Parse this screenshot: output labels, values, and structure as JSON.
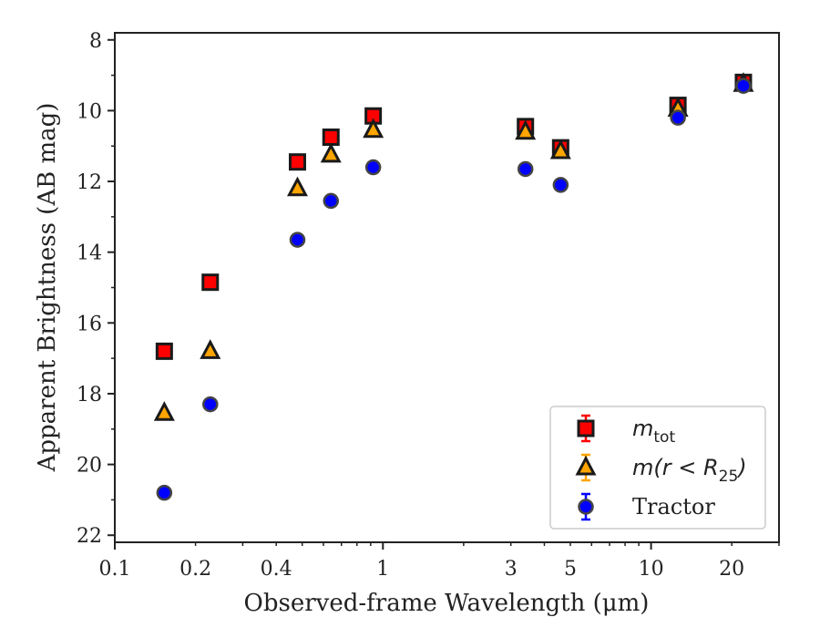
{
  "chart_data": {
    "type": "scatter",
    "xlabel": "Observed-frame Wavelength (μm)",
    "ylabel": "Apparent Brightness (AB mag)",
    "x_scale": "log",
    "xlim": [
      0.1,
      30
    ],
    "ylim": [
      22.2,
      7.8
    ],
    "y_inverted": true,
    "x_ticks": [
      0.1,
      0.2,
      0.4,
      1,
      3,
      5,
      10,
      20
    ],
    "x_tick_labels": [
      "0.1",
      "0.2",
      "0.4",
      "1",
      "3",
      "5",
      "10",
      "20"
    ],
    "y_ticks": [
      8,
      10,
      12,
      14,
      16,
      18,
      20,
      22
    ],
    "y_tick_labels": [
      "8",
      "10",
      "12",
      "14",
      "16",
      "18",
      "20",
      "22"
    ],
    "grid": false,
    "legend_position": "lower-right",
    "series": [
      {
        "name": "m_tot",
        "legend_main": "m",
        "legend_sub": "tot",
        "marker": "square",
        "color": "#ff0000",
        "edge": "#1a1a1a",
        "points": [
          {
            "x": 0.153,
            "y": 16.8
          },
          {
            "x": 0.227,
            "y": 14.85
          },
          {
            "x": 0.48,
            "y": 11.45
          },
          {
            "x": 0.64,
            "y": 10.75
          },
          {
            "x": 0.92,
            "y": 10.15
          },
          {
            "x": 3.4,
            "y": 10.45
          },
          {
            "x": 4.6,
            "y": 11.05
          },
          {
            "x": 12.6,
            "y": 9.85
          },
          {
            "x": 22.1,
            "y": 9.2
          }
        ]
      },
      {
        "name": "m(r<R25)",
        "legend_main": "m(r < R",
        "legend_sub": "25",
        "legend_end": ")",
        "marker": "triangle",
        "color": "#ffa500",
        "edge": "#1a1a1a",
        "points": [
          {
            "x": 0.153,
            "y": 18.55
          },
          {
            "x": 0.227,
            "y": 16.8
          },
          {
            "x": 0.48,
            "y": 12.2
          },
          {
            "x": 0.64,
            "y": 11.25
          },
          {
            "x": 0.92,
            "y": 10.55
          },
          {
            "x": 3.4,
            "y": 10.6
          },
          {
            "x": 4.6,
            "y": 11.15
          },
          {
            "x": 12.6,
            "y": 9.95
          },
          {
            "x": 22.1,
            "y": 9.25
          }
        ]
      },
      {
        "name": "Tractor",
        "legend_main": "Tractor",
        "marker": "circle",
        "color": "#0000ff",
        "edge": "#444444",
        "points": [
          {
            "x": 0.153,
            "y": 20.8
          },
          {
            "x": 0.227,
            "y": 18.3
          },
          {
            "x": 0.48,
            "y": 13.65
          },
          {
            "x": 0.64,
            "y": 12.55
          },
          {
            "x": 0.92,
            "y": 11.6
          },
          {
            "x": 3.4,
            "y": 11.65
          },
          {
            "x": 4.6,
            "y": 12.1
          },
          {
            "x": 12.6,
            "y": 10.2
          },
          {
            "x": 22.1,
            "y": 9.3
          }
        ]
      }
    ]
  }
}
